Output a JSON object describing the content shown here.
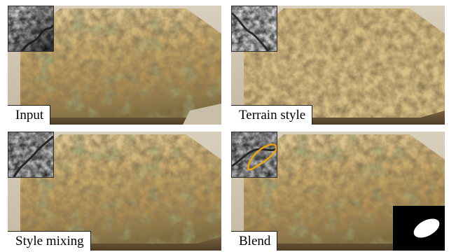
{
  "panels": [
    {
      "label": "Input"
    },
    {
      "label": "Terrain style"
    },
    {
      "label": "Style mixing"
    },
    {
      "label": "Blend"
    }
  ],
  "colors": {
    "background": "#cfc4b0",
    "terrain_light": "#e3cd95",
    "terrain_mid": "#b8975a",
    "terrain_shadow": "#6f5a33",
    "vegetation": "#5e6b3a",
    "heightmap_dark": "#2b2b2b",
    "heightmap_light": "#e6e6e6",
    "selection_outline": "#f2a500",
    "mask_fill": "#ffffff"
  },
  "icons": {
    "heightmap": "grayscale-heightmap-thumbnail",
    "mask": "blend-mask-thumbnail",
    "selection": "orange-selection-outline"
  }
}
